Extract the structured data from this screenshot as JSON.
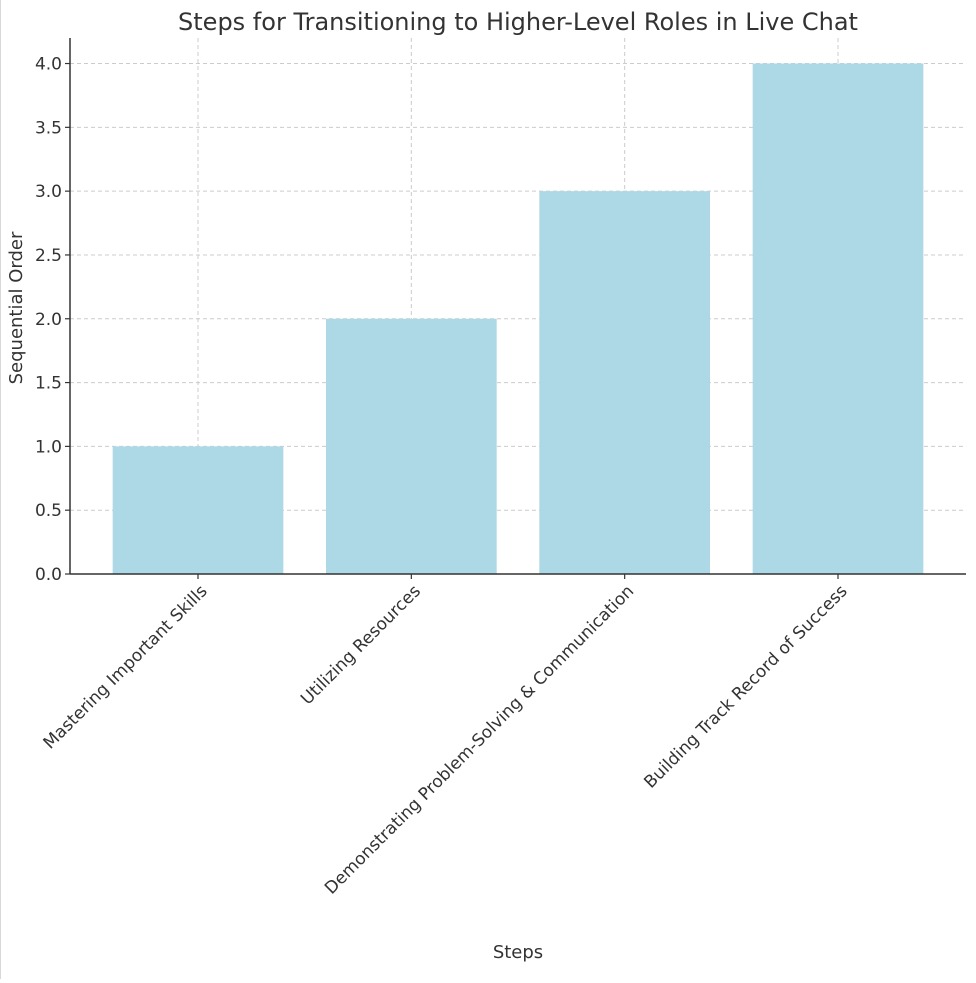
{
  "chart_data": {
    "type": "bar",
    "title": "Steps for Transitioning to Higher-Level Roles in Live Chat",
    "xlabel": "Steps",
    "ylabel": "Sequential Order",
    "categories": [
      "Mastering Important Skills",
      "Utilizing Resources",
      "Demonstrating Problem-Solving & Communication",
      "Building Track Record of Success"
    ],
    "values": [
      1,
      2,
      3,
      4
    ],
    "ylim": [
      0,
      4.2
    ],
    "yticks": [
      "0.0",
      "0.5",
      "1.0",
      "1.5",
      "2.0",
      "2.5",
      "3.0",
      "3.5",
      "4.0"
    ],
    "grid": true,
    "bar_color": "#add8e6",
    "axis_color": "#333333",
    "grid_color": "#cccccc"
  }
}
